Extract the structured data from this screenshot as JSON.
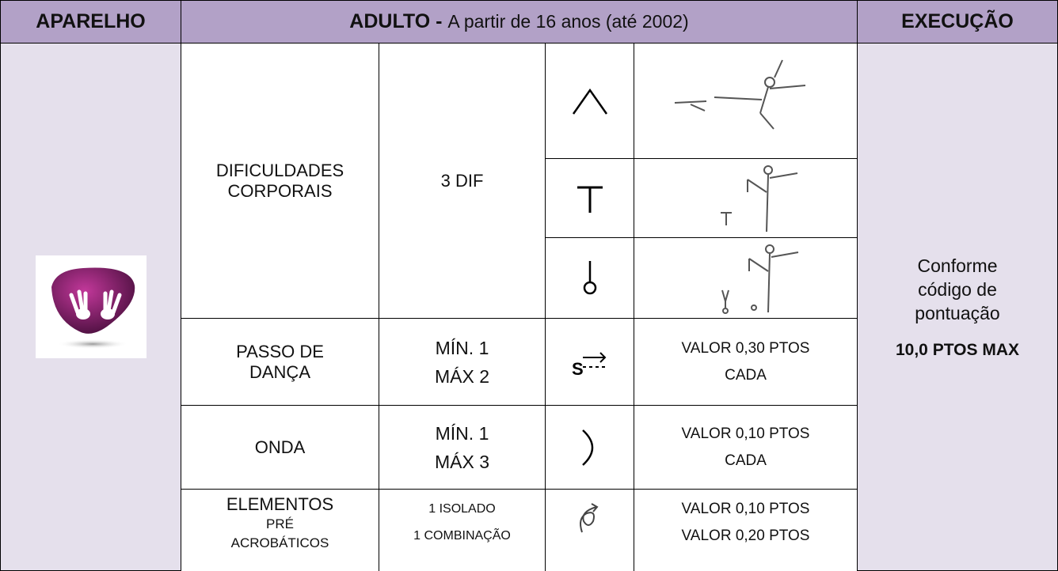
{
  "header": {
    "apparatus": "APARELHO",
    "category_bold": "ADULTO -",
    "category_text": "A partir de 16 anos (até 2002)",
    "execution": "EXECUÇÃO"
  },
  "rows": [
    {
      "element": "DIFICULDADES CORPORAIS",
      "quantity": [
        "3 DIF"
      ]
    },
    {
      "element": "PASSO DE DANÇA",
      "quantity": [
        "MÍN. 1",
        "MÁX 2"
      ],
      "value": [
        "VALOR 0,30 PTOS",
        "CADA"
      ]
    },
    {
      "element": "ONDA",
      "quantity": [
        "MÍN. 1",
        "MÁX 3"
      ],
      "value": [
        "VALOR 0,10 PTOS",
        "CADA"
      ]
    },
    {
      "element": "ELEMENTOS",
      "element_sub": "PRÉ ACROBÁTICOS",
      "quantity": [
        "1 ISOLADO",
        "1 COMBINAÇÃO"
      ],
      "value": [
        "VALOR 0,10 PTOS",
        "VALOR 0,20 PTOS"
      ]
    }
  ],
  "execution": {
    "text": "Conforme código de pontuação",
    "max": "10,0 PTOS MAX"
  }
}
